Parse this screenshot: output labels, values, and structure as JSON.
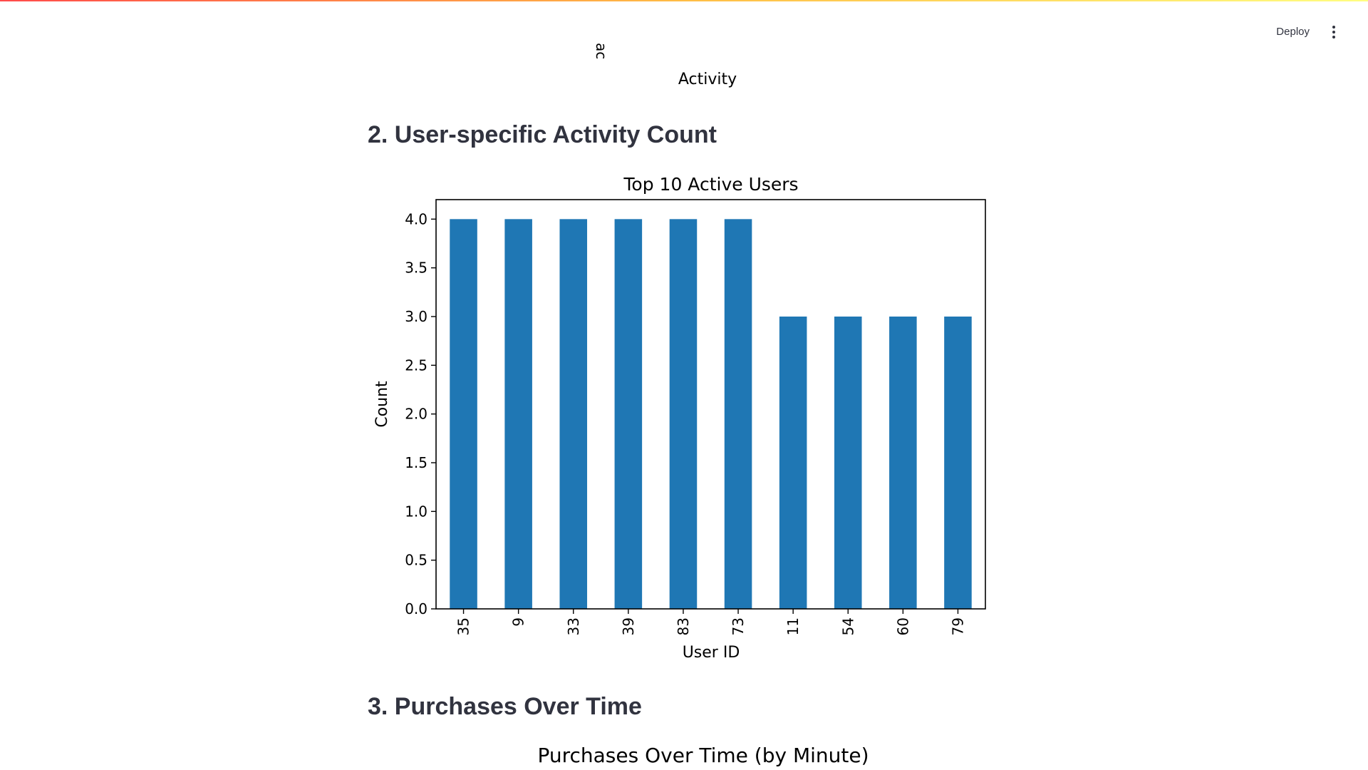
{
  "header": {
    "deploy_label": "Deploy",
    "menu_icon": "more-vertical-icon"
  },
  "previous_chart": {
    "xlabel": "Activity",
    "clipped_tick": "ac"
  },
  "sections": {
    "user_activity": "2. User-specific Activity Count",
    "purchases": "3. Purchases Over Time"
  },
  "chart_data": {
    "type": "bar",
    "title": "Top 10 Active Users",
    "xlabel": "User ID",
    "ylabel": "Count",
    "categories": [
      "35",
      "9",
      "33",
      "39",
      "83",
      "73",
      "11",
      "54",
      "60",
      "79"
    ],
    "values": [
      4,
      4,
      4,
      4,
      4,
      4,
      3,
      3,
      3,
      3
    ],
    "ylim": [
      0,
      4.2
    ],
    "yticks": [
      "0.0",
      "0.5",
      "1.0",
      "1.5",
      "2.0",
      "2.5",
      "3.0",
      "3.5",
      "4.0"
    ],
    "bar_color": "#1f77b4",
    "grid": false
  },
  "next_chart": {
    "title": "Purchases Over Time (by Minute)"
  }
}
